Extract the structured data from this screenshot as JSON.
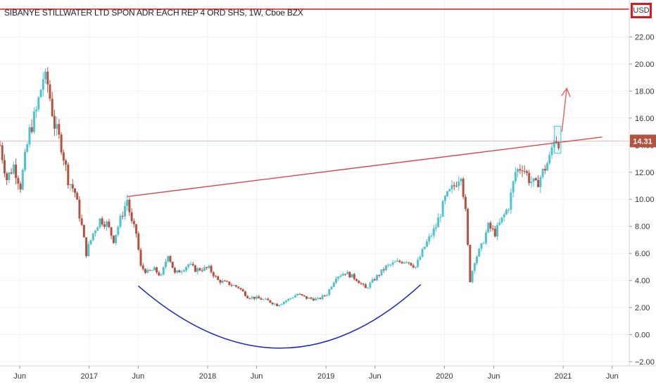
{
  "title": "SIBANYE STILLWATER LTD SPON ADR EACH REP 4 ORD SHS, 1W, Cboe BZX",
  "currency": "USD",
  "colors": {
    "up": "#4fc3cf",
    "down": "#b5513f",
    "resistance": "#e23a3a",
    "bowl": "#1a27c8",
    "arrow": "#e06b6b",
    "price_tag": "#b5513f",
    "box": "#4fc3cf",
    "top_line": "#e0161c"
  },
  "chart_data": {
    "type": "candlestick",
    "title": "SIBANYE STILLWATER LTD SPON ADR EACH REP 4 ORD SHS, 1W, Cboe BZX",
    "ylim": [
      -2,
      24
    ],
    "y_ticks": [
      "22.00",
      "20.00",
      "18.00",
      "16.00",
      "14.00",
      "12.00",
      "10.00",
      "8.00",
      "6.00",
      "4.00",
      "2.00",
      "0.00",
      "−2.00"
    ],
    "y_tick_values": [
      22,
      20,
      18,
      16,
      14,
      12,
      10,
      8,
      6,
      4,
      2,
      0,
      -2
    ],
    "x_ticks": [
      "Jun",
      "2017",
      "Jun",
      "2018",
      "Jun",
      "2019",
      "Jun",
      "2020",
      "Jun",
      "2021",
      "Jun"
    ],
    "x_tick_dates": [
      "2016-06-01",
      "2017-01-01",
      "2017-06-01",
      "2018-01-01",
      "2018-06-01",
      "2019-01-01",
      "2019-06-01",
      "2020-01-01",
      "2020-06-01",
      "2021-01-01",
      "2021-06-01"
    ],
    "x_range": [
      "2016-04-01",
      "2021-07-15"
    ],
    "last_price": "14.31",
    "last_price_value": 14.31,
    "price_path": [
      [
        "2016-04-01",
        14.0
      ],
      [
        "2016-04-22",
        11.5
      ],
      [
        "2016-05-13",
        12.5
      ],
      [
        "2016-06-03",
        11.0
      ],
      [
        "2016-07-01",
        15.0
      ],
      [
        "2016-07-22",
        16.5
      ],
      [
        "2016-08-12",
        19.0
      ],
      [
        "2016-08-26",
        18.5
      ],
      [
        "2016-09-16",
        15.5
      ],
      [
        "2016-10-07",
        14.0
      ],
      [
        "2016-10-28",
        11.5
      ],
      [
        "2016-11-18",
        10.5
      ],
      [
        "2016-12-09",
        8.0
      ],
      [
        "2016-12-23",
        6.0
      ],
      [
        "2017-01-13",
        7.5
      ],
      [
        "2017-02-03",
        8.5
      ],
      [
        "2017-02-24",
        8.2
      ],
      [
        "2017-03-17",
        7.0
      ],
      [
        "2017-04-07",
        8.5
      ],
      [
        "2017-04-28",
        10.0
      ],
      [
        "2017-05-12",
        8.2
      ],
      [
        "2017-05-26",
        7.5
      ],
      [
        "2017-06-09",
        5.0
      ],
      [
        "2017-06-30",
        4.6
      ],
      [
        "2017-07-21",
        4.8
      ],
      [
        "2017-08-11",
        4.3
      ],
      [
        "2017-09-01",
        6.0
      ],
      [
        "2017-09-22",
        4.5
      ],
      [
        "2017-10-13",
        4.8
      ],
      [
        "2017-11-03",
        5.2
      ],
      [
        "2017-11-24",
        4.8
      ],
      [
        "2018-01-05",
        4.9
      ],
      [
        "2018-02-02",
        4.0
      ],
      [
        "2018-03-02",
        3.8
      ],
      [
        "2018-04-06",
        3.5
      ],
      [
        "2018-05-04",
        2.8
      ],
      [
        "2018-06-01",
        2.7
      ],
      [
        "2018-07-06",
        2.5
      ],
      [
        "2018-08-03",
        2.2
      ],
      [
        "2018-09-07",
        2.6
      ],
      [
        "2018-10-05",
        3.0
      ],
      [
        "2018-11-02",
        2.7
      ],
      [
        "2018-12-07",
        2.6
      ],
      [
        "2019-01-04",
        3.0
      ],
      [
        "2019-02-01",
        4.3
      ],
      [
        "2019-03-01",
        4.6
      ],
      [
        "2019-04-05",
        4.1
      ],
      [
        "2019-05-03",
        3.4
      ],
      [
        "2019-06-07",
        4.3
      ],
      [
        "2019-07-05",
        5.0
      ],
      [
        "2019-08-02",
        5.3
      ],
      [
        "2019-09-06",
        5.5
      ],
      [
        "2019-10-04",
        5.0
      ],
      [
        "2019-11-01",
        6.5
      ],
      [
        "2019-12-06",
        8.0
      ],
      [
        "2020-01-03",
        10.0
      ],
      [
        "2020-01-31",
        11.0
      ],
      [
        "2020-02-21",
        12.0
      ],
      [
        "2020-03-06",
        9.0
      ],
      [
        "2020-03-20",
        4.0
      ],
      [
        "2020-04-03",
        5.5
      ],
      [
        "2020-04-24",
        6.5
      ],
      [
        "2020-05-15",
        8.0
      ],
      [
        "2020-06-05",
        7.5
      ],
      [
        "2020-06-26",
        8.5
      ],
      [
        "2020-07-17",
        9.5
      ],
      [
        "2020-08-07",
        12.0
      ],
      [
        "2020-08-28",
        12.5
      ],
      [
        "2020-09-18",
        11.5
      ],
      [
        "2020-10-09",
        11.0
      ],
      [
        "2020-10-30",
        12.0
      ],
      [
        "2020-11-20",
        13.0
      ],
      [
        "2020-12-04",
        14.6
      ],
      [
        "2020-12-18",
        14.31
      ]
    ],
    "resistance_line": {
      "from": [
        "2017-04-28",
        10.2
      ],
      "to": [
        "2021-05-01",
        14.6
      ]
    },
    "horizontal_line": 14.31,
    "bowl": {
      "from": [
        "2017-06-01",
        3.6
      ],
      "bottom": [
        "2018-08-15",
        -1.0
      ],
      "to": [
        "2019-10-20",
        3.7
      ]
    },
    "arrow": {
      "from": [
        "2020-12-28",
        15.0
      ],
      "to": [
        "2021-01-12",
        18.2
      ]
    },
    "highlight_box": {
      "from": [
        "2020-12-05",
        13.4
      ],
      "to": [
        "2020-12-25",
        15.4
      ]
    }
  }
}
